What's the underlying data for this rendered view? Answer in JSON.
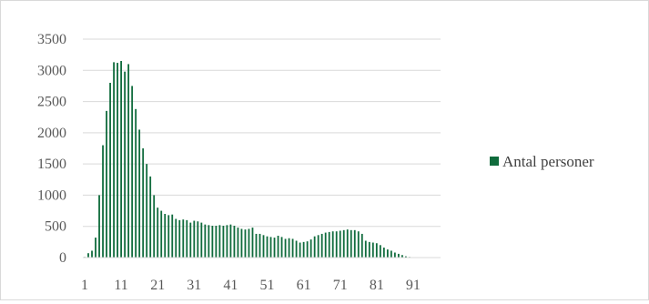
{
  "chart_data": {
    "type": "bar",
    "title": "",
    "xlabel": "",
    "ylabel": "",
    "ylim": [
      0,
      3500
    ],
    "yticks": [
      0,
      500,
      1000,
      1500,
      2000,
      2500,
      3000,
      3500
    ],
    "xticks": [
      1,
      11,
      21,
      31,
      41,
      51,
      61,
      71,
      81,
      91
    ],
    "grid": true,
    "legend_position": "right",
    "color": "#0f6b3c",
    "series": [
      {
        "name": "Antal personer",
        "x": [
          1,
          2,
          3,
          4,
          5,
          6,
          7,
          8,
          9,
          10,
          11,
          12,
          13,
          14,
          15,
          16,
          17,
          18,
          19,
          20,
          21,
          22,
          23,
          24,
          25,
          26,
          27,
          28,
          29,
          30,
          31,
          32,
          33,
          34,
          35,
          36,
          37,
          38,
          39,
          40,
          41,
          42,
          43,
          44,
          45,
          46,
          47,
          48,
          49,
          50,
          51,
          52,
          53,
          54,
          55,
          56,
          57,
          58,
          59,
          60,
          61,
          62,
          63,
          64,
          65,
          66,
          67,
          68,
          69,
          70,
          71,
          72,
          73,
          74,
          75,
          76,
          77,
          78,
          79,
          80,
          81,
          82,
          83,
          84,
          85,
          86,
          87,
          88,
          89,
          90,
          91,
          92,
          93,
          94,
          95,
          96,
          97,
          98
        ],
        "values": [
          10,
          70,
          110,
          320,
          1000,
          1800,
          2350,
          2800,
          3130,
          3120,
          3150,
          2980,
          3100,
          2750,
          2380,
          2050,
          1750,
          1500,
          1300,
          1000,
          800,
          750,
          700,
          680,
          690,
          620,
          600,
          610,
          600,
          560,
          590,
          580,
          560,
          530,
          520,
          510,
          510,
          520,
          510,
          520,
          530,
          510,
          480,
          460,
          450,
          460,
          480,
          380,
          380,
          360,
          340,
          330,
          320,
          350,
          330,
          300,
          310,
          300,
          270,
          240,
          250,
          260,
          290,
          340,
          360,
          380,
          400,
          410,
          420,
          420,
          430,
          440,
          450,
          440,
          440,
          420,
          380,
          270,
          250,
          240,
          230,
          200,
          160,
          130,
          110,
          80,
          60,
          40,
          20,
          10,
          5,
          5,
          0,
          0,
          0,
          0,
          0,
          0
        ]
      }
    ]
  }
}
